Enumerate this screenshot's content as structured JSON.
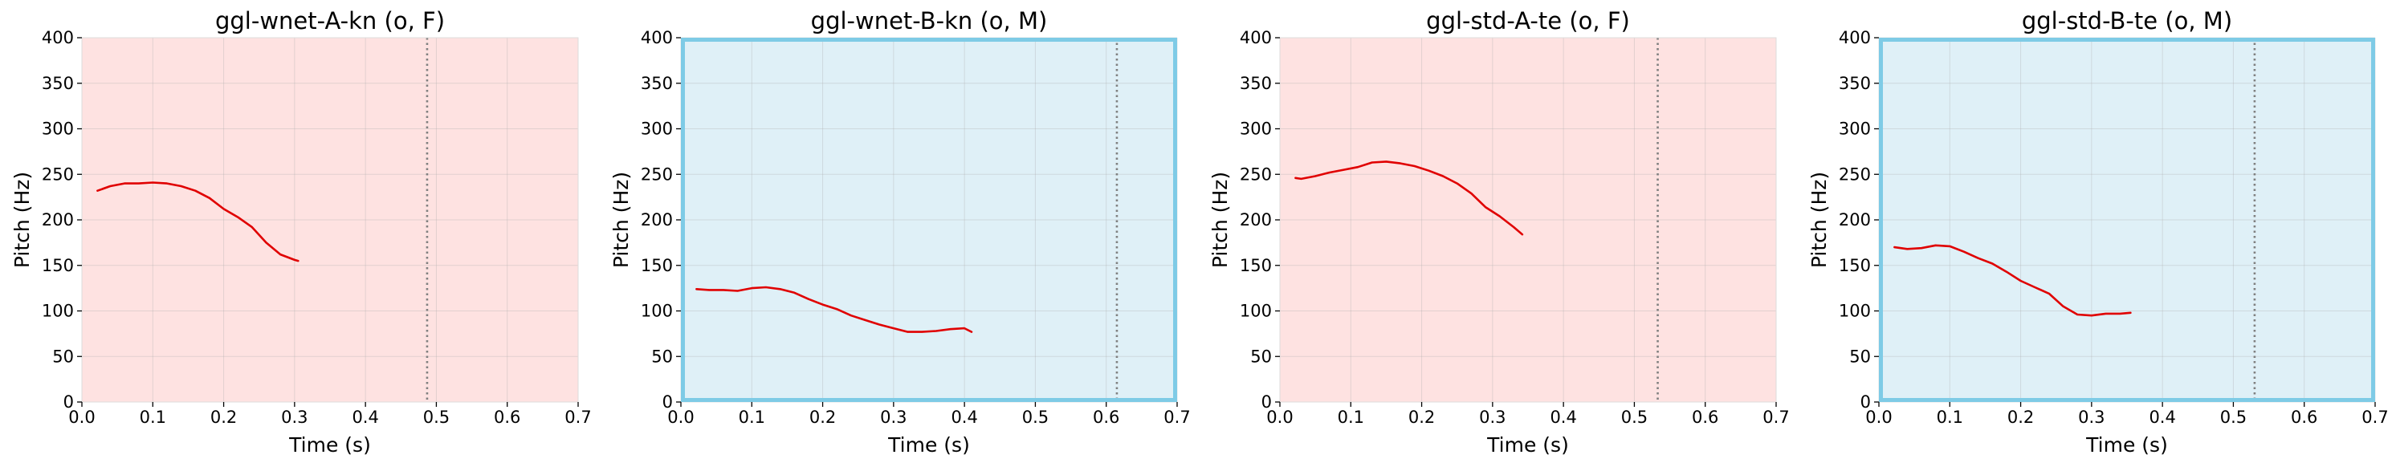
{
  "colors": {
    "female_bg": "#fee2e1",
    "male_bg": "#dff0f7",
    "male_border": "#7ecbe6",
    "pitch_line": "#e00000",
    "marker_line": "#808080",
    "grid": "#b0b0b0"
  },
  "chart_data": [
    {
      "type": "line",
      "title": "ggl-wnet-A-kn (o, F)",
      "xlabel": "Time (s)",
      "ylabel": "Pitch (Hz)",
      "xlim": [
        0,
        0.7
      ],
      "ylim": [
        0,
        400
      ],
      "xticks": [
        "0.0",
        "0.1",
        "0.2",
        "0.3",
        "0.4",
        "0.5",
        "0.6",
        "0.7"
      ],
      "yticks": [
        "0",
        "50",
        "100",
        "150",
        "200",
        "250",
        "300",
        "350",
        "400"
      ],
      "grid": true,
      "background": "female",
      "highlight_border": false,
      "marker_x": 0.487,
      "x": [
        0.022,
        0.04,
        0.06,
        0.08,
        0.1,
        0.12,
        0.14,
        0.16,
        0.18,
        0.2,
        0.22,
        0.24,
        0.26,
        0.28,
        0.3,
        0.305
      ],
      "y": [
        232,
        237,
        240,
        240,
        241,
        240,
        237,
        232,
        224,
        212,
        203,
        192,
        175,
        162,
        156,
        155
      ]
    },
    {
      "type": "line",
      "title": "ggl-wnet-B-kn (o, M)",
      "xlabel": "Time (s)",
      "ylabel": "Pitch (Hz)",
      "xlim": [
        0,
        0.7
      ],
      "ylim": [
        0,
        400
      ],
      "xticks": [
        "0.0",
        "0.1",
        "0.2",
        "0.3",
        "0.4",
        "0.5",
        "0.6",
        "0.7"
      ],
      "yticks": [
        "0",
        "50",
        "100",
        "150",
        "200",
        "250",
        "300",
        "350",
        "400"
      ],
      "grid": true,
      "background": "male",
      "highlight_border": true,
      "marker_x": 0.615,
      "x": [
        0.022,
        0.04,
        0.06,
        0.08,
        0.1,
        0.12,
        0.14,
        0.16,
        0.18,
        0.2,
        0.22,
        0.24,
        0.26,
        0.28,
        0.3,
        0.32,
        0.34,
        0.36,
        0.38,
        0.4,
        0.41
      ],
      "y": [
        124,
        123,
        123,
        122,
        125,
        126,
        124,
        120,
        113,
        107,
        102,
        95,
        90,
        85,
        81,
        77,
        77,
        78,
        80,
        81,
        77
      ]
    },
    {
      "type": "line",
      "title": "ggl-std-A-te (o, F)",
      "xlabel": "Time (s)",
      "ylabel": "Pitch (Hz)",
      "xlim": [
        0,
        0.7
      ],
      "ylim": [
        0,
        400
      ],
      "xticks": [
        "0.0",
        "0.1",
        "0.2",
        "0.3",
        "0.4",
        "0.5",
        "0.6",
        "0.7"
      ],
      "yticks": [
        "0",
        "50",
        "100",
        "150",
        "200",
        "250",
        "300",
        "350",
        "400"
      ],
      "grid": true,
      "background": "female",
      "highlight_border": false,
      "marker_x": 0.533,
      "x": [
        0.022,
        0.03,
        0.05,
        0.07,
        0.09,
        0.11,
        0.13,
        0.15,
        0.17,
        0.19,
        0.21,
        0.23,
        0.25,
        0.27,
        0.29,
        0.31,
        0.33,
        0.342
      ],
      "y": [
        246,
        245,
        248,
        252,
        255,
        258,
        263,
        264,
        262,
        259,
        254,
        248,
        240,
        229,
        214,
        204,
        192,
        184
      ]
    },
    {
      "type": "line",
      "title": "ggl-std-B-te (o, M)",
      "xlabel": "Time (s)",
      "ylabel": "Pitch (Hz)",
      "xlim": [
        0,
        0.7
      ],
      "ylim": [
        0,
        400
      ],
      "xticks": [
        "0.0",
        "0.1",
        "0.2",
        "0.3",
        "0.4",
        "0.5",
        "0.6",
        "0.7"
      ],
      "yticks": [
        "0",
        "50",
        "100",
        "150",
        "200",
        "250",
        "300",
        "350",
        "400"
      ],
      "grid": true,
      "background": "male",
      "highlight_border": true,
      "marker_x": 0.53,
      "x": [
        0.022,
        0.04,
        0.06,
        0.08,
        0.1,
        0.12,
        0.14,
        0.16,
        0.18,
        0.2,
        0.22,
        0.24,
        0.26,
        0.28,
        0.3,
        0.32,
        0.34,
        0.355
      ],
      "y": [
        170,
        168,
        169,
        172,
        171,
        165,
        158,
        152,
        143,
        133,
        126,
        119,
        105,
        96,
        95,
        97,
        97,
        98
      ]
    }
  ]
}
